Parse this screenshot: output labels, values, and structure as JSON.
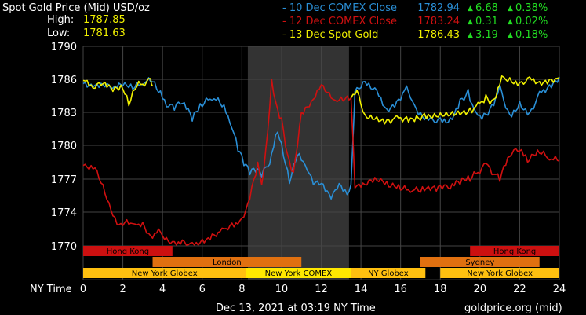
{
  "header": {
    "title": "Spot Gold Price (Mid) USD/oz",
    "high_label": "High:",
    "high_value": "1787.85",
    "low_label": "Low:",
    "low_value": "1781.63"
  },
  "legend": [
    {
      "label": "10 Dec COMEX Close",
      "price": "1782.94",
      "change": "6.68",
      "pct": "0.38%",
      "color": "#2a8fd6"
    },
    {
      "label": "12 Dec COMEX Close",
      "price": "1783.24",
      "change": "0.31",
      "pct": "0.02%",
      "color": "#d01010"
    },
    {
      "label": "13 Dec Spot Gold",
      "price": "1786.43",
      "change": "3.19",
      "pct": "0.18%",
      "color": "#f0f000"
    }
  ],
  "footer": {
    "x_axis_title": "NY Time",
    "timestamp": "Dec 13, 2021 at 03:19 NY Time",
    "source": "goldprice.org (mid)"
  },
  "sessions": [
    {
      "label": "Hong Kong",
      "start": 0,
      "end": 4.5,
      "color": "#cc1010"
    },
    {
      "label": "Hong Kong",
      "start": 19.5,
      "end": 24,
      "color": "#cc1010"
    },
    {
      "label": "London",
      "start": 3.5,
      "end": 11,
      "color": "#e07010"
    },
    {
      "label": "Sydney",
      "start": 17,
      "end": 23,
      "color": "#e07010"
    },
    {
      "label": "New York Globex",
      "start": 0,
      "end": 8.2,
      "color": "#ffc010"
    },
    {
      "label": "New York COMEX",
      "start": 8.2,
      "end": 13.5,
      "color": "#ffe800"
    },
    {
      "label": "NY Globex",
      "start": 13.5,
      "end": 17.25,
      "color": "#ffc010"
    },
    {
      "label": "New York Globex",
      "start": 18,
      "end": 24,
      "color": "#ffc010"
    }
  ],
  "chart_data": {
    "type": "line",
    "title": "Spot Gold Price (Mid) USD/oz",
    "xlabel": "NY Time",
    "ylabel": "",
    "xlim": [
      0,
      24
    ],
    "ylim": [
      1770,
      1790
    ],
    "x_ticks": [
      0,
      2,
      4,
      6,
      8,
      10,
      12,
      14,
      16,
      18,
      20,
      22,
      24
    ],
    "y_ticks": [
      1770,
      1774,
      1777,
      1780,
      1783,
      1786,
      1790
    ],
    "grid": true,
    "shaded_range": [
      8.3,
      13.4
    ],
    "series": [
      {
        "name": "10 Dec COMEX Close",
        "color": "#2a8fd6",
        "points": [
          [
            0,
            1785.6
          ],
          [
            0.5,
            1785.3
          ],
          [
            1,
            1785.5
          ],
          [
            1.5,
            1785.2
          ],
          [
            2,
            1785.4
          ],
          [
            2.5,
            1785.1
          ],
          [
            3,
            1785.5
          ],
          [
            3.4,
            1785.8
          ],
          [
            3.8,
            1784.8
          ],
          [
            4.2,
            1783.5
          ],
          [
            4.6,
            1783.2
          ],
          [
            5,
            1783.8
          ],
          [
            5.5,
            1782.2
          ],
          [
            6,
            1783.5
          ],
          [
            6.5,
            1784.1
          ],
          [
            7,
            1783.5
          ],
          [
            7.4,
            1782.0
          ],
          [
            7.8,
            1779.5
          ],
          [
            8.1,
            1778.2
          ],
          [
            8.4,
            1777.4
          ],
          [
            8.7,
            1777.6
          ],
          [
            9,
            1777.2
          ],
          [
            9.4,
            1778.3
          ],
          [
            9.8,
            1781.2
          ],
          [
            10.1,
            1779.0
          ],
          [
            10.4,
            1776.6
          ],
          [
            10.8,
            1779.1
          ],
          [
            11.2,
            1778.2
          ],
          [
            11.6,
            1776.5
          ],
          [
            12,
            1776.6
          ],
          [
            12.5,
            1775.2
          ],
          [
            12.9,
            1776.6
          ],
          [
            13.3,
            1775.6
          ],
          [
            13.5,
            1776.5
          ],
          [
            13.7,
            1784.9
          ],
          [
            14.2,
            1785.8
          ],
          [
            14.8,
            1785.0
          ],
          [
            15.3,
            1783.3
          ],
          [
            15.8,
            1784.0
          ],
          [
            16.3,
            1785.4
          ],
          [
            16.6,
            1784.0
          ],
          [
            17,
            1783.0
          ],
          [
            17.5,
            1782.5
          ],
          [
            18,
            1782.5
          ],
          [
            18.5,
            1782.5
          ],
          [
            19,
            1784.2
          ],
          [
            19.4,
            1785.1
          ],
          [
            19.8,
            1783.0
          ],
          [
            20.2,
            1782.9
          ],
          [
            20.6,
            1783.7
          ],
          [
            21,
            1785.5
          ],
          [
            21.5,
            1782.8
          ],
          [
            22,
            1784.0
          ],
          [
            22.5,
            1783.0
          ],
          [
            23,
            1784.9
          ],
          [
            23.5,
            1785.5
          ],
          [
            24,
            1786.3
          ]
        ]
      },
      {
        "name": "12 Dec COMEX Close",
        "color": "#d01010",
        "points": [
          [
            0,
            1778.2
          ],
          [
            0.6,
            1778.0
          ],
          [
            1,
            1776.5
          ],
          [
            1.4,
            1774.2
          ],
          [
            1.8,
            1772.5
          ],
          [
            2.2,
            1773.1
          ],
          [
            2.6,
            1772.6
          ],
          [
            3,
            1772.8
          ],
          [
            3.4,
            1771.2
          ],
          [
            3.8,
            1772.0
          ],
          [
            4.2,
            1771.0
          ],
          [
            4.6,
            1770.5
          ],
          [
            5,
            1770.7
          ],
          [
            5.5,
            1770.4
          ],
          [
            6,
            1770.8
          ],
          [
            6.5,
            1771.4
          ],
          [
            7,
            1772.1
          ],
          [
            7.5,
            1772.7
          ],
          [
            7.9,
            1773.0
          ],
          [
            8.2,
            1774.2
          ],
          [
            8.5,
            1776.3
          ],
          [
            8.8,
            1778.5
          ],
          [
            9,
            1776.5
          ],
          [
            9.3,
            1781.2
          ],
          [
            9.5,
            1786.0
          ],
          [
            9.8,
            1783.3
          ],
          [
            10,
            1782.5
          ],
          [
            10.3,
            1779.2
          ],
          [
            10.6,
            1777.6
          ],
          [
            11,
            1783.0
          ],
          [
            11.5,
            1784.0
          ],
          [
            12,
            1785.5
          ],
          [
            12.3,
            1784.8
          ],
          [
            12.7,
            1784.1
          ],
          [
            13.2,
            1784.2
          ],
          [
            13.5,
            1784.3
          ],
          [
            13.7,
            1776.2
          ],
          [
            14.2,
            1776.5
          ],
          [
            14.8,
            1776.9
          ],
          [
            15.4,
            1776.3
          ],
          [
            16,
            1776.0
          ],
          [
            16.5,
            1775.8
          ],
          [
            17,
            1775.8
          ],
          [
            17.8,
            1775.9
          ],
          [
            18.5,
            1776.1
          ],
          [
            19,
            1776.5
          ],
          [
            19.5,
            1776.8
          ],
          [
            20,
            1777.5
          ],
          [
            20.3,
            1778.4
          ],
          [
            20.6,
            1777.4
          ],
          [
            21,
            1776.8
          ],
          [
            21.5,
            1779.0
          ],
          [
            22,
            1779.5
          ],
          [
            22.4,
            1778.5
          ],
          [
            23,
            1779.3
          ],
          [
            23.5,
            1778.7
          ],
          [
            24,
            1778.6
          ]
        ]
      },
      {
        "name": "13 Dec Spot Gold",
        "color": "#f0f000",
        "points": [
          [
            0,
            1785.9
          ],
          [
            0.5,
            1785.2
          ],
          [
            1,
            1785.6
          ],
          [
            1.5,
            1784.9
          ],
          [
            2,
            1785.1
          ],
          [
            2.3,
            1783.6
          ],
          [
            2.7,
            1785.3
          ],
          [
            3.1,
            1785.4
          ],
          [
            3.4,
            1786.1
          ],
          [
            3.5,
            1785.5
          ],
          [
            13.5,
            1784.3
          ],
          [
            13.8,
            1785.0
          ],
          [
            14.2,
            1782.8
          ],
          [
            14.8,
            1782.6
          ],
          [
            15.3,
            1782.3
          ],
          [
            15.8,
            1782.7
          ],
          [
            16.3,
            1782.6
          ],
          [
            16.8,
            1782.7
          ],
          [
            17.2,
            1782.9
          ],
          [
            19.5,
            1783.4
          ],
          [
            19.9,
            1783.9
          ],
          [
            20.3,
            1784.6
          ],
          [
            20.6,
            1784.1
          ],
          [
            20.9,
            1785.2
          ],
          [
            21.1,
            1786.4
          ],
          [
            21.5,
            1786.2
          ],
          [
            22,
            1785.7
          ],
          [
            22.5,
            1786.3
          ],
          [
            23,
            1785.8
          ],
          [
            23.5,
            1786.0
          ],
          [
            24,
            1786.2
          ]
        ]
      }
    ]
  }
}
